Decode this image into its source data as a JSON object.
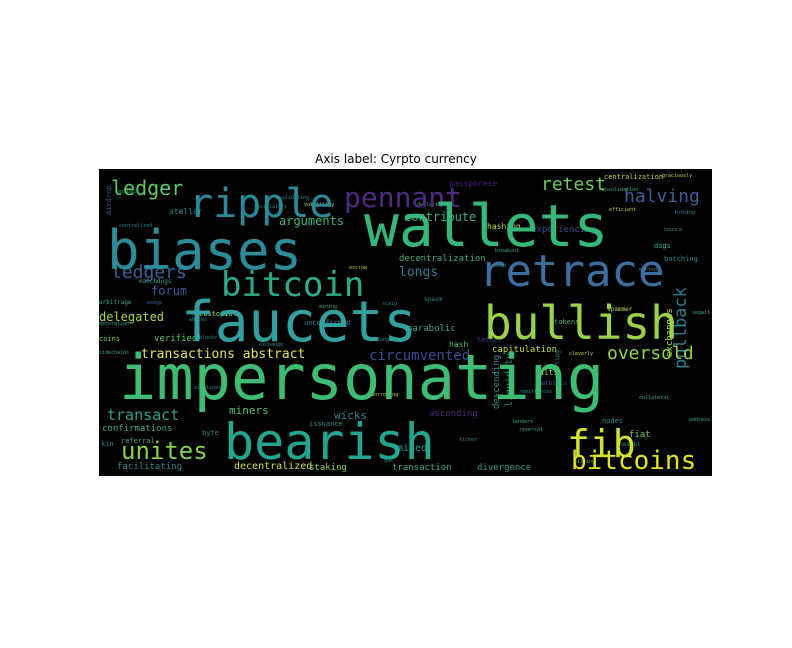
{
  "chart_data": {
    "type": "wordcloud",
    "title": "Axis label: Cyrpto currency",
    "background": "#000000",
    "palette": [
      "#440154",
      "#3b528b",
      "#21918c",
      "#5ec962",
      "#fde725"
    ],
    "words": [
      {
        "text": "impersonating",
        "size": 62,
        "rotate": 0,
        "color": "#3fbc73"
      },
      {
        "text": "wallets",
        "size": 58,
        "rotate": 0,
        "color": "#35b779"
      },
      {
        "text": "faucets",
        "size": 56,
        "rotate": 0,
        "color": "#33a0a0"
      },
      {
        "text": "biases",
        "size": 54,
        "rotate": 0,
        "color": "#2c8c9a"
      },
      {
        "text": "bearish",
        "size": 50,
        "rotate": 0,
        "color": "#23a68f"
      },
      {
        "text": "retrace",
        "size": 44,
        "rotate": 0,
        "color": "#3e6ea0"
      },
      {
        "text": "bullish",
        "size": 46,
        "rotate": 0,
        "color": "#9ad34a"
      },
      {
        "text": "ripple",
        "size": 40,
        "rotate": 0,
        "color": "#2b8a99"
      },
      {
        "text": "bitcoin",
        "size": 34,
        "rotate": 0,
        "color": "#2fab8b"
      },
      {
        "text": "fib",
        "size": 38,
        "rotate": 0,
        "color": "#d4e22c"
      },
      {
        "text": "pennant",
        "size": 28,
        "rotate": 0,
        "color": "#4e2a80"
      },
      {
        "text": "bitcoins",
        "size": 26,
        "rotate": 0,
        "color": "#e4e41a"
      },
      {
        "text": "unites",
        "size": 24,
        "rotate": 0,
        "color": "#84d14b"
      },
      {
        "text": "ledger",
        "size": 20,
        "rotate": 0,
        "color": "#5cc863"
      },
      {
        "text": "ledgers",
        "size": 18,
        "rotate": 0,
        "color": "#3b5f99"
      },
      {
        "text": "retest",
        "size": 18,
        "rotate": 0,
        "color": "#6ccd5a"
      },
      {
        "text": "halving",
        "size": 18,
        "rotate": 0,
        "color": "#3a6096"
      },
      {
        "text": "oversold",
        "size": 18,
        "rotate": 0,
        "color": "#8fd744"
      },
      {
        "text": "pullback",
        "size": 17,
        "rotate": 90,
        "color": "#2a7e8e"
      },
      {
        "text": "transact",
        "size": 15,
        "rotate": 0,
        "color": "#2ca38a"
      },
      {
        "text": "circumvented",
        "size": 14,
        "rotate": 0,
        "color": "#3a4d8c"
      },
      {
        "text": "transactions abstract",
        "size": 13,
        "rotate": 0,
        "color": "#e8e05e"
      },
      {
        "text": "longs",
        "size": 13,
        "rotate": 0,
        "color": "#2c7d8e"
      },
      {
        "text": "arguments",
        "size": 12,
        "rotate": 0,
        "color": "#38b877"
      },
      {
        "text": "contribute",
        "size": 12,
        "rotate": 0,
        "color": "#3aae7e"
      },
      {
        "text": "forum",
        "size": 12,
        "rotate": 0,
        "color": "#3b5a8e"
      },
      {
        "text": "delegated",
        "size": 12,
        "rotate": 0,
        "color": "#a4d846"
      },
      {
        "text": "miners",
        "size": 11,
        "rotate": 0,
        "color": "#4cc26c"
      },
      {
        "text": "wicks",
        "size": 11,
        "rotate": 0,
        "color": "#2d7f90"
      },
      {
        "text": "mined",
        "size": 10,
        "rotate": 0,
        "color": "#2a9a8b"
      },
      {
        "text": "decentralized",
        "size": 10,
        "rotate": 0,
        "color": "#cfe03a"
      },
      {
        "text": "decentralization",
        "size": 9,
        "rotate": 0,
        "color": "#3bab7c"
      },
      {
        "text": "experiencing",
        "size": 9,
        "rotate": 0,
        "color": "#3a4e8c"
      },
      {
        "text": "ascending",
        "size": 9,
        "rotate": 0,
        "color": "#482c79"
      },
      {
        "text": "liquidity",
        "size": 10,
        "rotate": 90,
        "color": "#2a7c8d"
      },
      {
        "text": "exchanges",
        "size": 9,
        "rotate": 90,
        "color": "#b0db3e"
      },
      {
        "text": "descending",
        "size": 9,
        "rotate": 90,
        "color": "#2b8f8c"
      },
      {
        "text": "confirmations",
        "size": 9,
        "rotate": 0,
        "color": "#3faf7a"
      },
      {
        "text": "verified",
        "size": 9,
        "rotate": 0,
        "color": "#5ac864"
      },
      {
        "text": "facilitating",
        "size": 9,
        "rotate": 0,
        "color": "#2a8a8c"
      },
      {
        "text": "transaction",
        "size": 9,
        "rotate": 0,
        "color": "#3cb27b"
      },
      {
        "text": "divergence",
        "size": 9,
        "rotate": 0,
        "color": "#2b9b8a"
      },
      {
        "text": "parabolic",
        "size": 9,
        "rotate": 0,
        "color": "#3ea77c"
      },
      {
        "text": "capitulation",
        "size": 9,
        "rotate": 0,
        "color": "#c5de3a"
      },
      {
        "text": "staking",
        "size": 9,
        "rotate": 0,
        "color": "#8bd547"
      },
      {
        "text": "hashing",
        "size": 8,
        "rotate": 0,
        "color": "#b6dc3c"
      },
      {
        "text": "hash",
        "size": 8,
        "rotate": 0,
        "color": "#4fc26a"
      },
      {
        "text": "alts",
        "size": 8,
        "rotate": 0,
        "color": "#b9dc3c"
      },
      {
        "text": "fiat",
        "size": 9,
        "rotate": 0,
        "color": "#6ccd5a"
      },
      {
        "text": "nodes",
        "size": 7,
        "rotate": 0,
        "color": "#2b8b8c"
      },
      {
        "text": "tokens",
        "size": 7,
        "rotate": 0,
        "color": "#3fae7b"
      },
      {
        "text": "tether",
        "size": 7,
        "rotate": 0,
        "color": "#463b80"
      },
      {
        "text": "stellar",
        "size": 8,
        "rotate": 0,
        "color": "#2a8b8c"
      },
      {
        "text": "airdrop",
        "size": 7,
        "rotate": 90,
        "color": "#3a5b8e"
      },
      {
        "text": "custodial",
        "size": 7,
        "rotate": 0,
        "color": "#b6dc3c"
      },
      {
        "text": "referral",
        "size": 7,
        "rotate": 0,
        "color": "#3aac7d"
      },
      {
        "text": "byte",
        "size": 7,
        "rotate": 0,
        "color": "#2a8a8c"
      },
      {
        "text": "coins",
        "size": 7,
        "rotate": 0,
        "color": "#7ed24e"
      },
      {
        "text": "kin",
        "size": 7,
        "rotate": 0,
        "color": "#2a8a8c"
      },
      {
        "text": "issuance",
        "size": 7,
        "rotate": 0,
        "color": "#2b8b8b"
      },
      {
        "text": "passphrase",
        "size": 8,
        "rotate": 0,
        "color": "#482071"
      },
      {
        "text": "centralization",
        "size": 7,
        "rotate": 0,
        "color": "#b8dc3c"
      },
      {
        "text": "batching",
        "size": 7,
        "rotate": 0,
        "color": "#2a8a8c"
      },
      {
        "text": "dogs",
        "size": 7,
        "rotate": 0,
        "color": "#3aac7d"
      },
      {
        "text": "masabi",
        "size": 6,
        "rotate": 0,
        "color": "#2a8a8c"
      },
      {
        "text": "spammer",
        "size": 6,
        "rotate": 0,
        "color": "#b8dc3c"
      },
      {
        "text": "unconfirmed",
        "size": 7,
        "rotate": 0,
        "color": "#2a8a8c"
      },
      {
        "text": "shorting",
        "size": 6,
        "rotate": 90,
        "color": "#2b8b8b"
      },
      {
        "text": "arbitrage",
        "size": 6,
        "rotate": 0,
        "color": "#3aac7d"
      },
      {
        "text": "matchdogs",
        "size": 6,
        "rotate": 0,
        "color": "#3aac7d"
      },
      {
        "text": "parabola",
        "size": 6,
        "rotate": 0,
        "color": "#482c79"
      },
      {
        "text": "spasm",
        "size": 6,
        "rotate": 0,
        "color": "#2a8a8c"
      },
      {
        "text": "fungible",
        "size": 5,
        "rotate": 0,
        "color": "#2a8a8c"
      },
      {
        "text": "deflationary",
        "size": 5,
        "rotate": 0,
        "color": "#3aac7d"
      },
      {
        "text": "graciously",
        "size": 5,
        "rotate": 0,
        "color": "#b8dc3c"
      },
      {
        "text": "centralized",
        "size": 5,
        "rotate": 0,
        "color": "#2a8a8c"
      },
      {
        "text": "cashback",
        "size": 5,
        "rotate": 0,
        "color": "#3aac7d"
      },
      {
        "text": "forking",
        "size": 5,
        "rotate": 0,
        "color": "#2a8a8c"
      },
      {
        "text": "wedge",
        "size": 5,
        "rotate": 0,
        "color": "#3a5b8e"
      },
      {
        "text": "blocks",
        "size": 5,
        "rotate": 0,
        "color": "#2a8a8c"
      },
      {
        "text": "proved",
        "size": 5,
        "rotate": 0,
        "color": "#3aac7d"
      },
      {
        "text": "bull",
        "size": 5,
        "rotate": 0,
        "color": "#2a8a8c"
      },
      {
        "text": "cleverly",
        "size": 5,
        "rotate": 0,
        "color": "#b8dc3c"
      },
      {
        "text": "reversal",
        "size": 5,
        "rotate": 0,
        "color": "#3aac7d"
      },
      {
        "text": "gas",
        "size": 5,
        "rotate": 0,
        "color": "#2a8a8c"
      },
      {
        "text": "pilling",
        "size": 5,
        "rotate": 0,
        "color": "#3aac7d"
      },
      {
        "text": "whales",
        "size": 5,
        "rotate": 0,
        "color": "#2a8a8c"
      },
      {
        "text": "decoration",
        "size": 5,
        "rotate": 0,
        "color": "#3aac7d"
      },
      {
        "text": "sidelines",
        "size": 5,
        "rotate": 0,
        "color": "#2a8a8c"
      },
      {
        "text": "efficient",
        "size": 5,
        "rotate": 0,
        "color": "#b8dc3c"
      },
      {
        "text": "breakout",
        "size": 5,
        "rotate": 0,
        "color": "#3aac7d"
      },
      {
        "text": "remittances",
        "size": 5,
        "rotate": 0,
        "color": "#2a8a8c"
      },
      {
        "text": "consolidation",
        "size": 5,
        "rotate": 0,
        "color": "#3aac7d"
      },
      {
        "text": "scalp",
        "size": 5,
        "rotate": 0,
        "color": "#2a8a8c"
      },
      {
        "text": "borrowing",
        "size": 5,
        "rotate": 0,
        "color": "#b8dc3c"
      },
      {
        "text": "address",
        "size": 5,
        "rotate": 0,
        "color": "#3aac7d"
      },
      {
        "text": "ticker",
        "size": 5,
        "rotate": 0,
        "color": "#2a8a8c"
      },
      {
        "text": "collateral",
        "size": 5,
        "rotate": 0,
        "color": "#3aac7d"
      },
      {
        "text": "validating",
        "size": 5,
        "rotate": 0,
        "color": "#2a8a8c"
      },
      {
        "text": "lenders",
        "size": 5,
        "rotate": 0,
        "color": "#3aac7d"
      },
      {
        "text": "volatility",
        "size": 5,
        "rotate": 0,
        "color": "#b8dc3c"
      },
      {
        "text": "exchange",
        "size": 5,
        "rotate": 0,
        "color": "#2a8a8c"
      },
      {
        "text": "mining",
        "size": 5,
        "rotate": 0,
        "color": "#3aac7d"
      },
      {
        "text": "bounce",
        "size": 5,
        "rotate": 0,
        "color": "#2a8a8c"
      },
      {
        "text": "sidechains",
        "size": 5,
        "rotate": 0,
        "color": "#3aac7d"
      },
      {
        "text": "minted",
        "size": 5,
        "rotate": 0,
        "color": "#2a8a8c"
      },
      {
        "text": "segwit",
        "size": 5,
        "rotate": 0,
        "color": "#3aac7d"
      },
      {
        "text": "escrow",
        "size": 5,
        "rotate": 0,
        "color": "#b8dc3c"
      },
      {
        "text": "oscillators",
        "size": 5,
        "rotate": 0,
        "color": "#2a8a8c"
      }
    ]
  }
}
